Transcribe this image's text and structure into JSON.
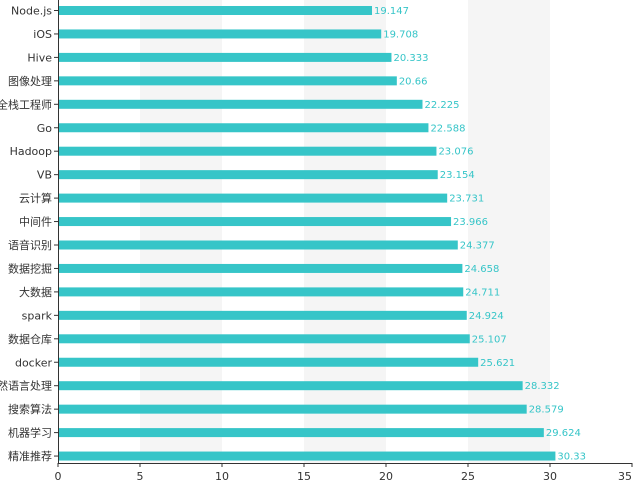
{
  "chart_data": {
    "type": "bar",
    "orientation": "horizontal",
    "categories": [
      "Node.js",
      "iOS",
      "Hive",
      "图像处理",
      "全栈工程师",
      "Go",
      "Hadoop",
      "VB",
      "云计算",
      "中间件",
      "语音识别",
      "数据挖掘",
      "大数据",
      "spark",
      "数据仓库",
      "docker",
      "自然语言处理",
      "搜索算法",
      "机器学习",
      "精准推荐"
    ],
    "values": [
      19.147,
      19.708,
      20.333,
      20.66,
      22.225,
      22.588,
      23.076,
      23.154,
      23.731,
      23.966,
      24.377,
      24.658,
      24.711,
      24.924,
      25.107,
      25.621,
      28.332,
      28.579,
      29.624,
      30.33
    ],
    "value_labels": [
      "19.147",
      "19.708",
      "20.333",
      "20.66",
      "22.225",
      "22.588",
      "23.076",
      "23.154",
      "23.731",
      "23.966",
      "24.377",
      "24.658",
      "24.711",
      "24.924",
      "25.107",
      "25.621",
      "28.332",
      "28.579",
      "29.624",
      "30.33"
    ],
    "xlim": [
      0,
      35
    ],
    "x_ticks": [
      0,
      5,
      10,
      15,
      20,
      25,
      30,
      35
    ],
    "x_tick_labels": [
      "0",
      "5",
      "10",
      "15",
      "20",
      "25",
      "30",
      "35"
    ],
    "grid": "vertical alternating bands",
    "legend": "none",
    "title": "",
    "xlabel": "",
    "ylabel": "",
    "colors": {
      "bar": "#36c5c8",
      "label": "#36c5c8",
      "axis": "#333333",
      "band": "#f5f5f5"
    }
  }
}
